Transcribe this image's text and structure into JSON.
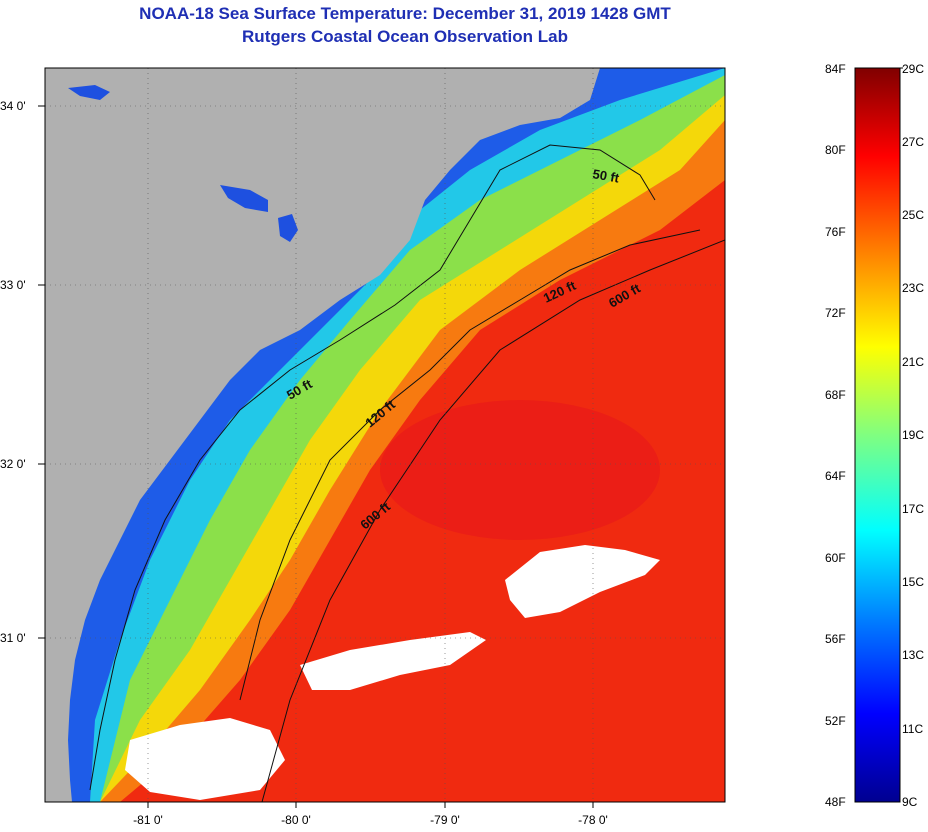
{
  "title": {
    "line1": "NOAA-18 Sea Surface Temperature:  December 31, 2019 1428 GMT",
    "line2": "Rutgers Coastal Ocean Observation Lab"
  },
  "map": {
    "lat_labels": [
      "34 0'",
      "33 0'",
      "32 0'",
      "31 0'"
    ],
    "lon_labels": [
      "-81 0'",
      "-80 0'",
      "-79 0'",
      "-78 0'"
    ],
    "contour_labels": [
      "50 ft",
      "50 ft",
      "120 ft",
      "120 ft",
      "600 ft",
      "600 ft"
    ]
  },
  "colorbar": {
    "fahrenheit": [
      "84F",
      "80F",
      "76F",
      "72F",
      "68F",
      "64F",
      "60F",
      "56F",
      "52F",
      "48F"
    ],
    "celsius": [
      "29C",
      "27C",
      "25C",
      "23C",
      "21C",
      "19C",
      "17C",
      "15C",
      "13C",
      "11C",
      "9C"
    ],
    "colors": [
      "#000090",
      "#0000ff",
      "#0080ff",
      "#00ffff",
      "#80ff80",
      "#ffff00",
      "#ff8000",
      "#ff0000",
      "#800000"
    ]
  }
}
